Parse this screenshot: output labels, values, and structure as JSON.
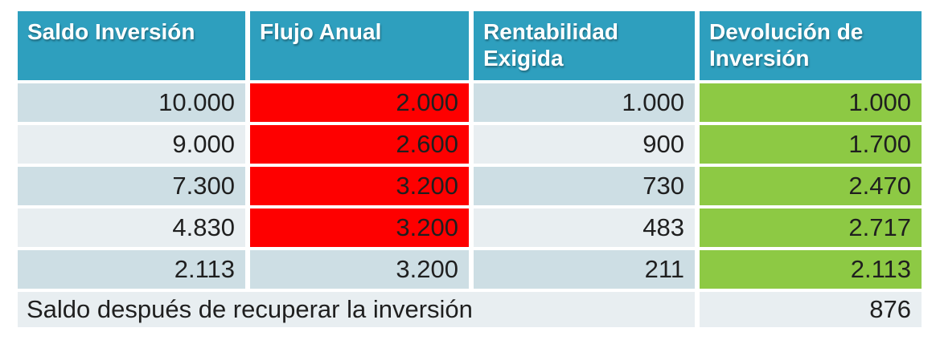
{
  "colors": {
    "header_bg": "#2E9FBE",
    "header_text": "#FFFFFF",
    "row_band_dark": "#CDDEE4",
    "row_band_light": "#E8EEF1",
    "negative_flow_bg": "#FE0000",
    "return_bg": "#8DC944",
    "cell_text": "#1F1F1F"
  },
  "table": {
    "headers": [
      "Saldo Inversión",
      "Flujo Anual",
      "Rentabilidad Exigida",
      "Devolución de Inversión"
    ],
    "rows": [
      {
        "saldo": "10.000",
        "flujo": "2.000",
        "rentabilidad": "1.000",
        "devolucion": "1.000"
      },
      {
        "saldo": "9.000",
        "flujo": "2.600",
        "rentabilidad": "900",
        "devolucion": "1.700"
      },
      {
        "saldo": "7.300",
        "flujo": "3.200",
        "rentabilidad": "730",
        "devolucion": "2.470"
      },
      {
        "saldo": "4.830",
        "flujo": "3.200",
        "rentabilidad": "483",
        "devolucion": "2.717"
      },
      {
        "saldo": "2.113",
        "flujo": "3.200",
        "rentabilidad": "211",
        "devolucion": "2.113"
      }
    ],
    "footer": {
      "label": "Saldo después de recuperar la inversión",
      "value": "876"
    }
  },
  "chart_data": {
    "type": "table",
    "title": "",
    "columns": [
      "Saldo Inversión",
      "Flujo Anual",
      "Rentabilidad Exigida",
      "Devolución de Inversión"
    ],
    "rows": [
      [
        10000,
        2000,
        1000,
        1000
      ],
      [
        9000,
        2600,
        900,
        1700
      ],
      [
        7300,
        3200,
        730,
        2470
      ],
      [
        4830,
        3200,
        483,
        2717
      ],
      [
        2113,
        3200,
        211,
        2113
      ]
    ],
    "footer_label": "Saldo después de recuperar la inversión",
    "footer_value": 876,
    "highlights": {
      "flujo_anual_red_rows": [
        0,
        1,
        2,
        3
      ],
      "devolucion_green_rows": [
        0,
        1,
        2,
        3,
        4
      ]
    }
  }
}
